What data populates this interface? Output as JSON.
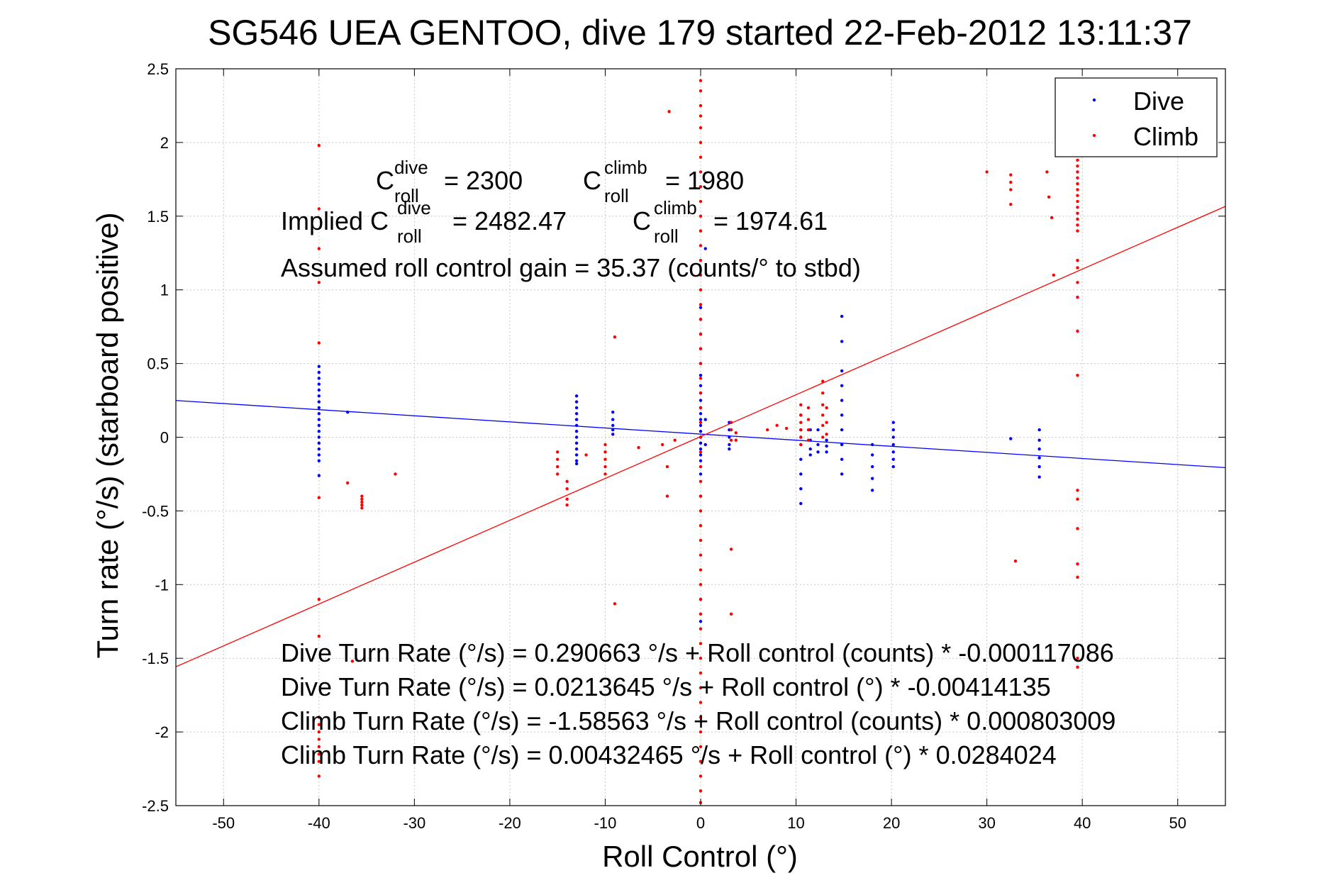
{
  "chart_data": {
    "type": "scatter",
    "title": "SG546 UEA GENTOO, dive 179 started 22-Feb-2012 13:11:37",
    "xlabel": "Roll Control (°)",
    "ylabel": "Turn rate (°/s) (starboard positive)",
    "xlim": [
      -55,
      55
    ],
    "ylim": [
      -2.5,
      2.5
    ],
    "xticks": [
      -50,
      -40,
      -30,
      -20,
      -10,
      0,
      10,
      20,
      30,
      40,
      50
    ],
    "yticks": [
      2.5,
      2,
      1.5,
      1,
      0.5,
      0,
      -0.5,
      -1,
      -1.5,
      -2,
      -2.5
    ],
    "grid": true,
    "legend_position": "top-right",
    "series": [
      {
        "name": "Dive",
        "color": "#0000ff",
        "points": [
          [
            -40,
            0.48
          ],
          [
            -40,
            0.44
          ],
          [
            -40,
            0.4
          ],
          [
            -40,
            0.36
          ],
          [
            -40,
            0.32
          ],
          [
            -40,
            0.28
          ],
          [
            -40,
            0.24
          ],
          [
            -40,
            0.2
          ],
          [
            -40,
            0.16
          ],
          [
            -40,
            0.12
          ],
          [
            -40,
            0.08
          ],
          [
            -40,
            0.04
          ],
          [
            -40,
            0.0
          ],
          [
            -40,
            -0.04
          ],
          [
            -40,
            -0.08
          ],
          [
            -40,
            -0.12
          ],
          [
            -40,
            -0.16
          ],
          [
            -40,
            -0.26
          ],
          [
            -37,
            0.17
          ],
          [
            -13,
            0.28
          ],
          [
            -13,
            0.24
          ],
          [
            -13,
            0.2
          ],
          [
            -13,
            0.16
          ],
          [
            -13,
            0.12
          ],
          [
            -13,
            0.08
          ],
          [
            -13,
            0.04
          ],
          [
            -13,
            0.0
          ],
          [
            -13,
            -0.04
          ],
          [
            -13,
            -0.08
          ],
          [
            -13,
            -0.12
          ],
          [
            -13,
            -0.16
          ],
          [
            -13,
            -0.18
          ],
          [
            -9.2,
            0.17
          ],
          [
            -9.2,
            0.12
          ],
          [
            -9.2,
            0.08
          ],
          [
            -9.2,
            0.05
          ],
          [
            -9.2,
            0.02
          ],
          [
            0,
            0.88
          ],
          [
            0,
            0.8
          ],
          [
            0,
            0.7
          ],
          [
            0,
            0.6
          ],
          [
            0,
            0.5
          ],
          [
            0,
            0.42
          ],
          [
            0,
            0.35
          ],
          [
            0,
            0.3
          ],
          [
            0,
            0.25
          ],
          [
            0,
            0.2
          ],
          [
            0,
            0.16
          ],
          [
            0,
            0.12
          ],
          [
            0,
            0.08
          ],
          [
            0,
            0.04
          ],
          [
            0,
            0.0
          ],
          [
            0,
            -0.04
          ],
          [
            0,
            -0.08
          ],
          [
            0,
            -0.12
          ],
          [
            0,
            -0.16
          ],
          [
            0,
            -0.25
          ],
          [
            0,
            -0.4
          ],
          [
            0,
            -1.1
          ],
          [
            0,
            -1.25
          ],
          [
            0.5,
            1.28
          ],
          [
            0.5,
            0.12
          ],
          [
            0.5,
            -0.05
          ],
          [
            3,
            0.1
          ],
          [
            3,
            0.05
          ],
          [
            3,
            0.0
          ],
          [
            3,
            -0.05
          ],
          [
            3,
            -0.08
          ],
          [
            10.5,
            0.15
          ],
          [
            10.5,
            0.05
          ],
          [
            10.5,
            0.0
          ],
          [
            10.5,
            -0.05
          ],
          [
            10.5,
            -0.15
          ],
          [
            10.5,
            -0.25
          ],
          [
            10.5,
            -0.35
          ],
          [
            10.5,
            -0.45
          ],
          [
            11.5,
            0.05
          ],
          [
            11.5,
            -0.02
          ],
          [
            11.5,
            -0.08
          ],
          [
            11.5,
            -0.12
          ],
          [
            12.3,
            0.05
          ],
          [
            12.3,
            -0.05
          ],
          [
            12.3,
            -0.1
          ],
          [
            13.2,
            -0.02
          ],
          [
            13.2,
            -0.06
          ],
          [
            13.2,
            -0.1
          ],
          [
            14.8,
            0.82
          ],
          [
            14.8,
            0.65
          ],
          [
            14.8,
            0.45
          ],
          [
            14.8,
            0.35
          ],
          [
            14.8,
            0.25
          ],
          [
            14.8,
            0.15
          ],
          [
            14.8,
            0.05
          ],
          [
            14.8,
            -0.05
          ],
          [
            14.8,
            -0.15
          ],
          [
            14.8,
            -0.25
          ],
          [
            18,
            -0.05
          ],
          [
            18,
            -0.12
          ],
          [
            18,
            -0.2
          ],
          [
            18,
            -0.28
          ],
          [
            18,
            -0.36
          ],
          [
            20.2,
            0.1
          ],
          [
            20.2,
            0.05
          ],
          [
            20.2,
            0.0
          ],
          [
            20.2,
            -0.05
          ],
          [
            20.2,
            -0.1
          ],
          [
            20.2,
            -0.15
          ],
          [
            20.2,
            -0.2
          ],
          [
            32.5,
            -0.01
          ],
          [
            35.5,
            0.05
          ],
          [
            35.5,
            -0.02
          ],
          [
            35.5,
            -0.08
          ],
          [
            35.5,
            -0.14
          ],
          [
            35.5,
            -0.2
          ],
          [
            35.5,
            -0.27
          ]
        ]
      },
      {
        "name": "Climb",
        "color": "#ff0000",
        "points": [
          [
            -40,
            1.98
          ],
          [
            -40,
            1.55
          ],
          [
            -40,
            1.28
          ],
          [
            -40,
            1.05
          ],
          [
            -40,
            0.64
          ],
          [
            -40,
            -0.41
          ],
          [
            -40,
            -1.1
          ],
          [
            -40,
            -1.35
          ],
          [
            -40,
            -1.9
          ],
          [
            -40,
            -1.95
          ],
          [
            -40,
            -2.0
          ],
          [
            -40,
            -2.05
          ],
          [
            -40,
            -2.1
          ],
          [
            -40,
            -2.15
          ],
          [
            -40,
            -2.2
          ],
          [
            -40,
            -2.3
          ],
          [
            -37,
            -0.31
          ],
          [
            -36.5,
            -1.52
          ],
          [
            -35.5,
            -0.4
          ],
          [
            -35.5,
            -0.42
          ],
          [
            -35.5,
            -0.44
          ],
          [
            -35.5,
            -0.46
          ],
          [
            -35.5,
            -0.48
          ],
          [
            -32,
            -0.25
          ],
          [
            -15,
            -0.1
          ],
          [
            -15,
            -0.15
          ],
          [
            -15,
            -0.2
          ],
          [
            -15,
            -0.25
          ],
          [
            -14,
            -0.3
          ],
          [
            -14,
            -0.35
          ],
          [
            -14,
            -0.42
          ],
          [
            -14,
            -0.46
          ],
          [
            -12,
            -0.12
          ],
          [
            -10,
            -0.05
          ],
          [
            -10,
            -0.1
          ],
          [
            -10,
            -0.15
          ],
          [
            -10,
            -0.2
          ],
          [
            -10,
            -0.25
          ],
          [
            -9,
            0.68
          ],
          [
            -9,
            -1.13
          ],
          [
            -6.5,
            -0.07
          ],
          [
            -4,
            -0.05
          ],
          [
            -3.5,
            -0.2
          ],
          [
            -3.5,
            -0.4
          ],
          [
            -3.3,
            2.21
          ],
          [
            -2.7,
            -0.02
          ],
          [
            0,
            2.42
          ],
          [
            0,
            2.35
          ],
          [
            0,
            2.25
          ],
          [
            0,
            2.18
          ],
          [
            0,
            2.1
          ],
          [
            0,
            2.0
          ],
          [
            0,
            1.9
          ],
          [
            0,
            1.8
          ],
          [
            0,
            1.7
          ],
          [
            0,
            1.6
          ],
          [
            0,
            1.5
          ],
          [
            0,
            1.4
          ],
          [
            0,
            1.3
          ],
          [
            0,
            1.2
          ],
          [
            0,
            1.1
          ],
          [
            0,
            1.0
          ],
          [
            0,
            0.9
          ],
          [
            0,
            0.8
          ],
          [
            0,
            0.7
          ],
          [
            0,
            0.6
          ],
          [
            0,
            0.5
          ],
          [
            0,
            0.4
          ],
          [
            0,
            0.3
          ],
          [
            0,
            0.2
          ],
          [
            0,
            0.1
          ],
          [
            0,
            0.0
          ],
          [
            0,
            -0.1
          ],
          [
            0,
            -0.2
          ],
          [
            0,
            -0.3
          ],
          [
            0,
            -0.4
          ],
          [
            0,
            -0.5
          ],
          [
            0,
            -0.6
          ],
          [
            0,
            -0.7
          ],
          [
            0,
            -0.8
          ],
          [
            0,
            -0.9
          ],
          [
            0,
            -1.0
          ],
          [
            0,
            -1.1
          ],
          [
            0,
            -1.2
          ],
          [
            0,
            -1.3
          ],
          [
            0,
            -1.4
          ],
          [
            0,
            -1.5
          ],
          [
            0,
            -1.6
          ],
          [
            0,
            -1.7
          ],
          [
            0,
            -1.8
          ],
          [
            0,
            -1.9
          ],
          [
            0,
            -2.0
          ],
          [
            0,
            -2.1
          ],
          [
            0,
            -2.2
          ],
          [
            0,
            -2.3
          ],
          [
            0,
            -2.4
          ],
          [
            0,
            -2.48
          ],
          [
            3.2,
            0.1
          ],
          [
            3.2,
            0.05
          ],
          [
            3.2,
            -0.02
          ],
          [
            3.2,
            -0.76
          ],
          [
            3.2,
            -1.2
          ],
          [
            3.7,
            0.03
          ],
          [
            3.7,
            -0.02
          ],
          [
            7,
            0.05
          ],
          [
            8,
            0.08
          ],
          [
            9,
            0.06
          ],
          [
            10.5,
            0.22
          ],
          [
            10.5,
            0.15
          ],
          [
            10.5,
            0.1
          ],
          [
            10.5,
            0.05
          ],
          [
            10.5,
            0.0
          ],
          [
            10.5,
            -0.05
          ],
          [
            11.3,
            0.2
          ],
          [
            11.3,
            0.12
          ],
          [
            11.3,
            0.05
          ],
          [
            11.3,
            -0.02
          ],
          [
            12.8,
            0.38
          ],
          [
            12.8,
            0.3
          ],
          [
            12.8,
            0.22
          ],
          [
            12.8,
            0.15
          ],
          [
            12.8,
            0.08
          ],
          [
            12.8,
            0.0
          ],
          [
            13.2,
            0.2
          ],
          [
            13.2,
            0.1
          ],
          [
            13.2,
            0.02
          ],
          [
            30,
            1.8
          ],
          [
            32.5,
            1.78
          ],
          [
            32.5,
            1.73
          ],
          [
            32.5,
            1.68
          ],
          [
            32.5,
            1.58
          ],
          [
            33,
            -0.84
          ],
          [
            36.3,
            1.8
          ],
          [
            36.5,
            1.63
          ],
          [
            36.8,
            1.49
          ],
          [
            37,
            1.1
          ],
          [
            39.5,
            1.88
          ],
          [
            39.5,
            1.84
          ],
          [
            39.5,
            1.8
          ],
          [
            39.5,
            1.76
          ],
          [
            39.5,
            1.72
          ],
          [
            39.5,
            1.68
          ],
          [
            39.5,
            1.64
          ],
          [
            39.5,
            1.6
          ],
          [
            39.5,
            1.56
          ],
          [
            39.5,
            1.52
          ],
          [
            39.5,
            1.48
          ],
          [
            39.5,
            1.44
          ],
          [
            39.5,
            1.4
          ],
          [
            39.5,
            1.2
          ],
          [
            39.5,
            1.15
          ],
          [
            39.5,
            1.05
          ],
          [
            39.5,
            0.95
          ],
          [
            39.5,
            0.72
          ],
          [
            39.5,
            0.42
          ],
          [
            39.5,
            -0.36
          ],
          [
            39.5,
            -0.42
          ],
          [
            39.5,
            -0.62
          ],
          [
            39.5,
            -0.86
          ],
          [
            39.5,
            -0.95
          ],
          [
            39.5,
            -1.5
          ],
          [
            39.5,
            -1.56
          ]
        ]
      }
    ],
    "fit_lines": [
      {
        "series": "Dive",
        "color": "#0000ff",
        "intercept": 0.0213645,
        "slope": -0.00414135
      },
      {
        "series": "Climb",
        "color": "#ff0000",
        "intercept": 0.00432465,
        "slope": 0.0284024
      }
    ],
    "annotations": {
      "c_dive_label": "C",
      "c_dive_sup": "dive",
      "c_dive_sub": "roll",
      "c_dive_val": "= 2300",
      "c_climb_label": "C",
      "c_climb_sup": "climb",
      "c_climb_sub": "roll",
      "c_climb_val": "= 1980",
      "implied_prefix": "Implied C",
      "implied_dive_sup": "dive",
      "implied_dive_sub": "roll",
      "implied_dive_val": "= 2482.47",
      "implied_climb_label": "C",
      "implied_climb_sup": "climb",
      "implied_climb_sub": "roll",
      "implied_climb_val": "= 1974.61",
      "gain": "Assumed roll control gain = 35.37 (counts/° to stbd)",
      "fit1": "Dive Turn Rate (°/s) = 0.290663 °/s + Roll control (counts) * -0.000117086",
      "fit2": "Dive Turn Rate (°/s) = 0.0213645 °/s + Roll control (°) * -0.00414135",
      "fit3": "Climb Turn Rate (°/s) = -1.58563 °/s + Roll control (counts) * 0.000803009",
      "fit4": "Climb Turn Rate (°/s) = 0.00432465 °/s + Roll control (°) * 0.0284024"
    }
  }
}
